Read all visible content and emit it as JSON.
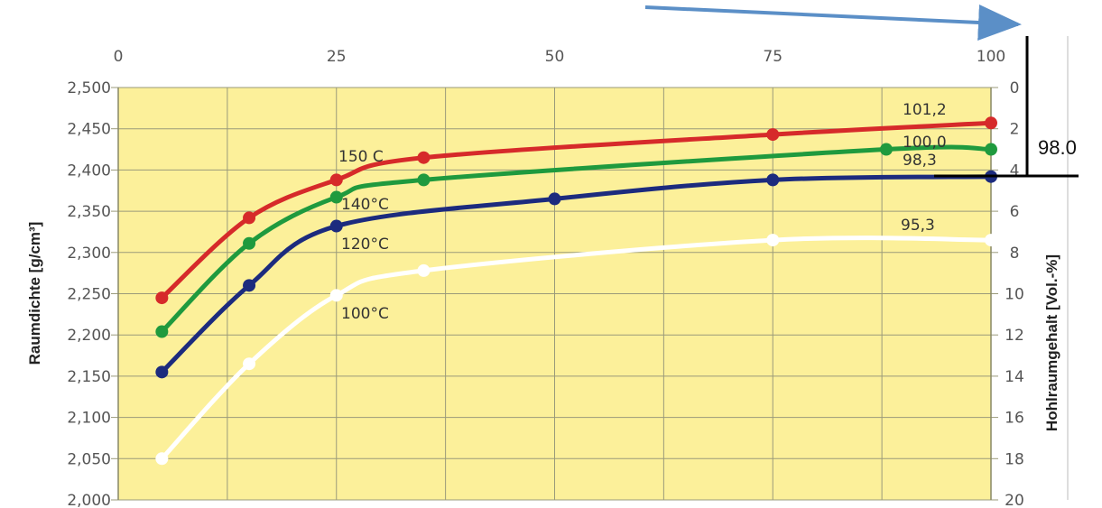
{
  "chart_data": {
    "type": "line",
    "title": "",
    "xlabel": "",
    "ylabel": "Raumdichte [g/cm³]",
    "y2label": "Hohlraumgehalt [Vol.-%]",
    "xlim": [
      0,
      100
    ],
    "ylim": [
      2.0,
      2.5
    ],
    "y2lim": [
      0,
      20
    ],
    "x_ticks": [
      "0",
      "25",
      "50",
      "75",
      "100"
    ],
    "y_ticks": [
      "2,000",
      "2,050",
      "2,100",
      "2,150",
      "2,200",
      "2,250",
      "2,300",
      "2,350",
      "2,400",
      "2,450",
      "2,500"
    ],
    "y2_ticks": [
      "0",
      "2",
      "4",
      "6",
      "8",
      "10",
      "12",
      "14",
      "16",
      "18",
      "20"
    ],
    "grid": true,
    "background": "#fcf09a",
    "series": [
      {
        "name": "150 C",
        "color": "#d62a2a",
        "x": [
          5,
          15,
          25,
          35,
          75,
          100
        ],
        "y": [
          2.245,
          2.342,
          2.388,
          2.415,
          2.443,
          2.457
        ],
        "end_label": "101,2"
      },
      {
        "name": "140°C",
        "color": "#1f9a3e",
        "x": [
          5,
          15,
          25,
          35,
          88,
          100
        ],
        "y": [
          2.204,
          2.311,
          2.367,
          2.388,
          2.425,
          2.425
        ],
        "end_label": "100,0"
      },
      {
        "name": "120°C",
        "color": "#1c2b7e",
        "x": [
          5,
          15,
          25,
          50,
          75,
          100
        ],
        "y": [
          2.155,
          2.26,
          2.332,
          2.365,
          2.388,
          2.392
        ],
        "end_label": "98,3"
      },
      {
        "name": "100°C",
        "color": "#ffffff",
        "x": [
          5,
          15,
          25,
          35,
          75,
          100
        ],
        "y": [
          2.05,
          2.165,
          2.248,
          2.278,
          2.315,
          2.315
        ],
        "end_label": "95,3"
      }
    ],
    "annotations": {
      "marker_label": "98.0",
      "marker_value": 98.0
    }
  }
}
